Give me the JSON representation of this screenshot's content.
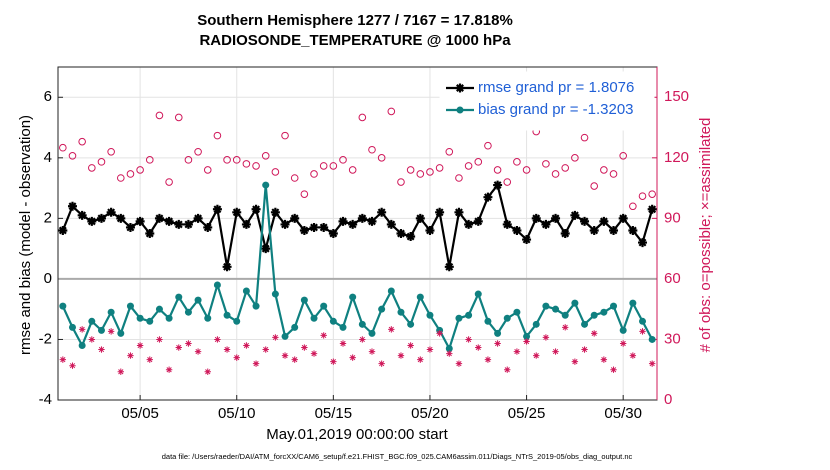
{
  "chart_data": {
    "type": "line",
    "title": "Southern Hemisphere 1277 / 7167 = 17.818%",
    "subtitle": "RADIOSONDE_TEMPERATURE @ 1000 hPa",
    "ylabel": "rmse and bias (model - observation)",
    "y2label": "# of obs: o=possible; ×=assimilated",
    "xlabel": "May.01,2019 00:00:00 start",
    "footnote": "data file: /Users/raeder/DAI/ATM_forcXX/CAM6_setup/f.e21.FHIST_BGC.f09_025.CAM6assim.011/Diags_NTrS_2019-05/obs_diag_output.nc",
    "x": [
      0,
      0.5,
      1,
      1.5,
      2,
      2.5,
      3,
      3.5,
      4,
      4.5,
      5,
      5.5,
      6,
      6.5,
      7,
      7.5,
      8,
      8.5,
      9,
      9.5,
      10,
      10.5,
      11,
      11.5,
      12,
      12.5,
      13,
      13.5,
      14,
      14.5,
      15,
      15.5,
      16,
      16.5,
      17,
      17.5,
      18,
      18.5,
      19,
      19.5,
      20,
      20.5,
      21,
      21.5,
      22,
      22.5,
      23,
      23.5,
      24,
      24.5,
      25,
      25.5,
      26,
      26.5,
      27,
      27.5,
      28,
      28.5,
      29,
      29.5,
      30,
      30.5
    ],
    "xlim": [
      -0.25,
      30.75
    ],
    "xticks": [
      {
        "value": 4,
        "label": "05/05"
      },
      {
        "value": 9,
        "label": "05/10"
      },
      {
        "value": 14,
        "label": "05/15"
      },
      {
        "value": 19,
        "label": "05/20"
      },
      {
        "value": 24,
        "label": "05/25"
      },
      {
        "value": 29,
        "label": "05/30"
      }
    ],
    "ylim": [
      -4,
      7
    ],
    "yticks": [
      -4,
      -2,
      0,
      2,
      4,
      6
    ],
    "y2lim": [
      0,
      165
    ],
    "y2ticks": [
      0,
      30,
      60,
      90,
      120,
      150
    ],
    "grid": true,
    "legend": "upper right",
    "series": [
      {
        "name": "rmse grand pr = 1.8076",
        "color": "#000000",
        "marker": "star",
        "values": [
          1.6,
          2.4,
          2.1,
          1.9,
          2.0,
          2.2,
          2.0,
          1.7,
          1.9,
          1.5,
          2.0,
          1.9,
          1.8,
          1.8,
          2.0,
          1.7,
          2.3,
          0.4,
          2.2,
          1.8,
          2.3,
          1.0,
          2.2,
          1.8,
          2.0,
          1.6,
          1.7,
          1.7,
          1.5,
          1.9,
          1.8,
          2.0,
          1.9,
          2.2,
          1.8,
          1.5,
          1.4,
          2.0,
          1.6,
          2.2,
          0.4,
          2.2,
          1.8,
          1.9,
          2.7,
          3.1,
          1.8,
          1.6,
          1.3,
          2.0,
          1.8,
          2.0,
          1.5,
          2.1,
          1.9,
          1.6,
          1.9,
          1.6,
          2.0,
          1.6,
          1.2,
          2.3
        ]
      },
      {
        "name": "bias grand pr = -1.3203",
        "color": "#0f8080",
        "marker": "dot",
        "values": [
          -0.9,
          -1.6,
          -2.2,
          -1.4,
          -1.7,
          -1.1,
          -1.8,
          -0.9,
          -1.3,
          -1.4,
          -1.0,
          -1.3,
          -0.6,
          -1.1,
          -0.7,
          -1.3,
          -0.2,
          -1.2,
          -1.4,
          -0.4,
          -0.9,
          3.1,
          -0.5,
          -1.9,
          -1.6,
          -0.7,
          -1.3,
          -0.9,
          -1.4,
          -1.6,
          -0.6,
          -1.5,
          -1.8,
          -1.0,
          -0.4,
          -1.1,
          -1.5,
          -0.6,
          -1.2,
          -1.7,
          -2.3,
          -1.3,
          -1.2,
          -0.5,
          -1.4,
          -1.8,
          -1.3,
          -1.1,
          -1.9,
          -1.5,
          -0.9,
          -1.0,
          -1.2,
          -0.8,
          -1.5,
          -1.2,
          -1.1,
          -0.9,
          -1.7,
          -0.8,
          -1.4,
          -2.0
        ]
      },
      {
        "color": "#d0185a",
        "marker": "circle",
        "axis": "y2",
        "values": [
          125,
          121,
          128,
          115,
          118,
          123,
          110,
          112,
          114,
          119,
          141,
          108,
          140,
          119,
          123,
          114,
          131,
          119,
          119,
          117,
          116,
          121,
          113,
          131,
          110,
          102,
          112,
          116,
          116,
          119,
          114,
          140,
          124,
          120,
          143,
          108,
          114,
          112,
          113,
          115,
          123,
          110,
          116,
          118,
          126,
          114,
          108,
          118,
          114,
          133,
          117,
          112,
          115,
          120,
          130,
          106,
          114,
          112,
          121,
          96,
          101,
          102
        ]
      },
      {
        "color": "#d0185a",
        "marker": "asterisk",
        "axis": "y2",
        "values": [
          20,
          17,
          35,
          30,
          25,
          34,
          14,
          22,
          27,
          20,
          30,
          15,
          26,
          28,
          24,
          14,
          30,
          25,
          21,
          27,
          18,
          25,
          31,
          22,
          20,
          26,
          23,
          32,
          19,
          28,
          21,
          30,
          24,
          18,
          35,
          22,
          27,
          20,
          25,
          33,
          23,
          18,
          30,
          26,
          20,
          28,
          15,
          24,
          29,
          22,
          31,
          24,
          36,
          19,
          25,
          33,
          20,
          15,
          28,
          22,
          34,
          18
        ]
      }
    ]
  }
}
